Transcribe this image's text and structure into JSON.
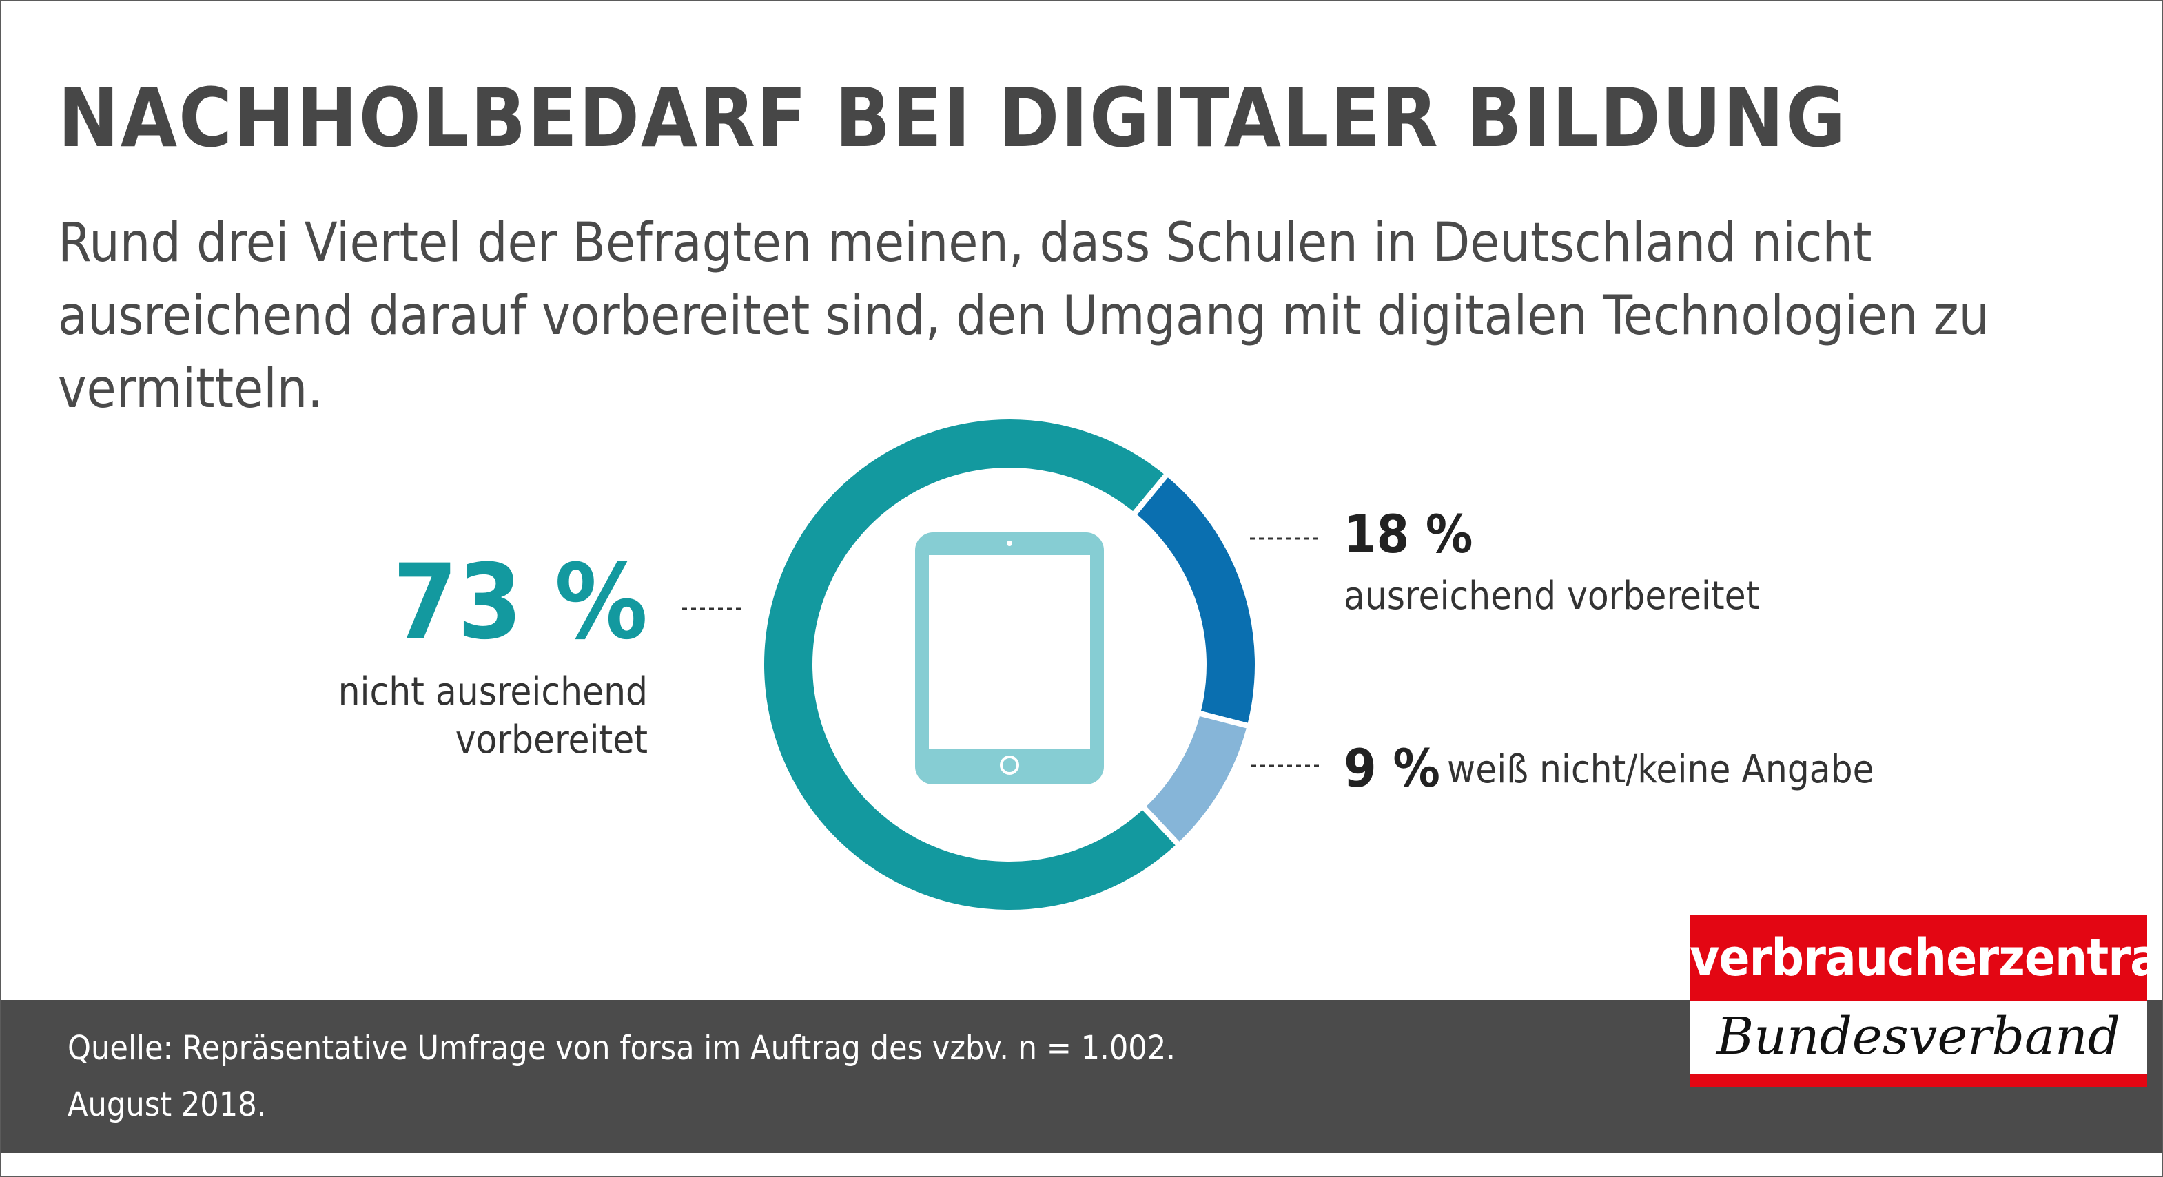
{
  "title": "NACHHOLBEDARF BEI DIGITALER BILDUNG",
  "subtitle": "Rund drei Viertel der Befragten meinen, dass Schulen in Deutschland nicht ausreichend darauf vorbereitet sind, den Umgang mit digitalen Technologien zu vermitteln.",
  "chart_data": {
    "type": "pie",
    "variant": "donut",
    "center_icon": "tablet-icon",
    "series": [
      {
        "value": 73,
        "label_value": "73 %",
        "label": "nicht ausreichend vorbereitet",
        "color": "#13999f"
      },
      {
        "value": 18,
        "label_value": "18 %",
        "label": "ausreichend vorbereitet",
        "color": "#0a6fb0"
      },
      {
        "value": 9,
        "label_value": "9 %",
        "label": "weiß nicht/keine Angabe",
        "color": "#86b5d8"
      }
    ]
  },
  "footer": {
    "source_line1": "Quelle: Repräsentative Umfrage von forsa im Auftrag des vzbv. n = 1.002.",
    "source_line2": "August 2018."
  },
  "logo": {
    "brand": "verbraucherzentrale",
    "sub": "Bundesverband"
  },
  "colors": {
    "title": "#474747",
    "footer_bg": "#4b4b4b",
    "logo_red": "#e30613",
    "icon": "#86cdd3"
  }
}
